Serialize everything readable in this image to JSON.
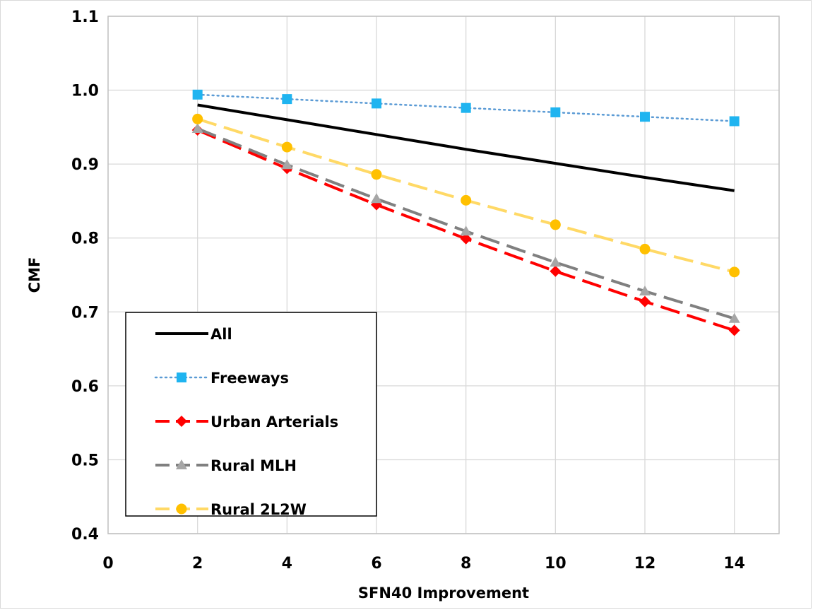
{
  "chart_data": {
    "type": "line",
    "title": "",
    "xlabel": "SFN40 Improvement",
    "ylabel": "CMF",
    "xlim": [
      0,
      15
    ],
    "ylim": [
      0.4,
      1.1
    ],
    "xticks": [
      "0",
      "2",
      "4",
      "6",
      "8",
      "10",
      "12",
      "14"
    ],
    "yticks": [
      "0.4",
      "0.5",
      "0.6",
      "0.7",
      "0.8",
      "0.9",
      "1.0",
      "1.1"
    ],
    "grid": "vertical",
    "legend_position": "bottom-left",
    "x": [
      2,
      4,
      6,
      8,
      10,
      12,
      14
    ],
    "series": [
      {
        "name": "All",
        "color": "#000000",
        "style": "solid",
        "marker": "none",
        "values": [
          0.98,
          0.96,
          0.94,
          0.92,
          0.901,
          0.882,
          0.864
        ]
      },
      {
        "name": "Freeways",
        "color": "#5b9bd5",
        "style": "dotted",
        "marker": "square",
        "marker_color": "#1fb4f0",
        "values": [
          0.994,
          0.988,
          0.982,
          0.976,
          0.97,
          0.964,
          0.958
        ]
      },
      {
        "name": "Urban Arterials",
        "color": "#ff0000",
        "style": "dashed",
        "marker": "diamond",
        "marker_color": "#ff0000",
        "values": [
          0.946,
          0.894,
          0.845,
          0.799,
          0.755,
          0.714,
          0.675
        ]
      },
      {
        "name": "Rural MLH",
        "color": "#808080",
        "style": "dashed",
        "marker": "triangle",
        "marker_color": "#a6a6a6",
        "values": [
          0.948,
          0.899,
          0.853,
          0.809,
          0.767,
          0.728,
          0.691
        ]
      },
      {
        "name": "Rural 2L2W",
        "color": "#ffd966",
        "style": "dashed",
        "marker": "circle",
        "marker_color": "#ffc000",
        "values": [
          0.961,
          0.923,
          0.886,
          0.851,
          0.818,
          0.785,
          0.754
        ]
      }
    ]
  }
}
